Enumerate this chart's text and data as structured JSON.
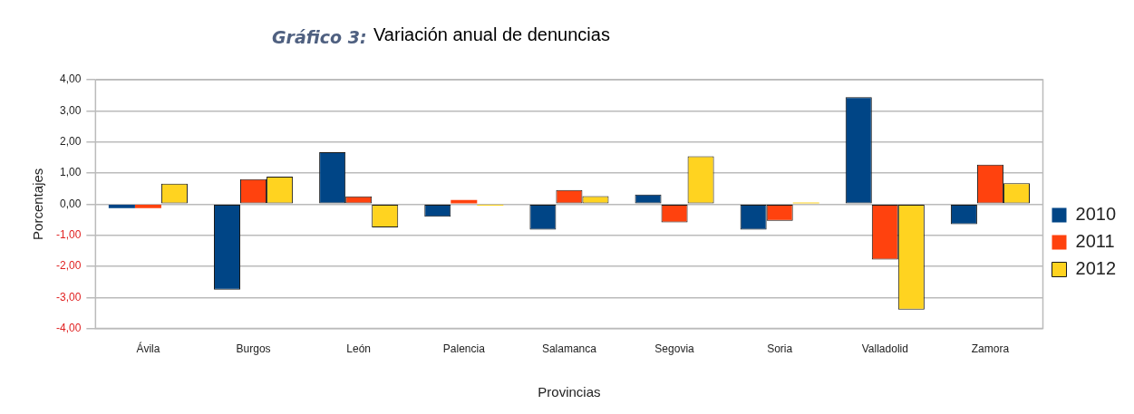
{
  "chart_data": {
    "type": "bar",
    "title": "Gráfico 3:",
    "subtitle": "Variación anual de denuncias",
    "xlabel": "Provincias",
    "ylabel": "Porcentajes",
    "categories": [
      "Ávila",
      "Burgos",
      "León",
      "Palencia",
      "Salamanca",
      "Segovia",
      "Soria",
      "Valladolid",
      "Zamora"
    ],
    "series": [
      {
        "name": "2010",
        "color": "#004586",
        "values": [
          -0.13,
          -2.75,
          1.67,
          -0.41,
          -0.82,
          0.31,
          -0.82,
          3.44,
          -0.65
        ]
      },
      {
        "name": "2011",
        "color": "#ff420e",
        "values": [
          -0.13,
          0.8,
          0.25,
          0.13,
          0.45,
          -0.59,
          -0.54,
          -1.78,
          1.27
        ]
      },
      {
        "name": "2012",
        "color": "#ffd320",
        "values": [
          0.66,
          0.88,
          -0.75,
          -0.05,
          0.26,
          1.54,
          0.05,
          -3.39,
          0.67
        ]
      }
    ],
    "ylim": [
      -4,
      4
    ],
    "yticks": [
      {
        "value": -4,
        "label": "-4,00"
      },
      {
        "value": -3,
        "label": "-3,00"
      },
      {
        "value": -2,
        "label": "-2,00"
      },
      {
        "value": -1,
        "label": "-1,00"
      },
      {
        "value": 0,
        "label": "0,00"
      },
      {
        "value": 1,
        "label": "1,00"
      },
      {
        "value": 2,
        "label": "2,00"
      },
      {
        "value": 3,
        "label": "3,00"
      },
      {
        "value": 4,
        "label": "4,00"
      }
    ],
    "grid": "y",
    "legend": "right"
  }
}
